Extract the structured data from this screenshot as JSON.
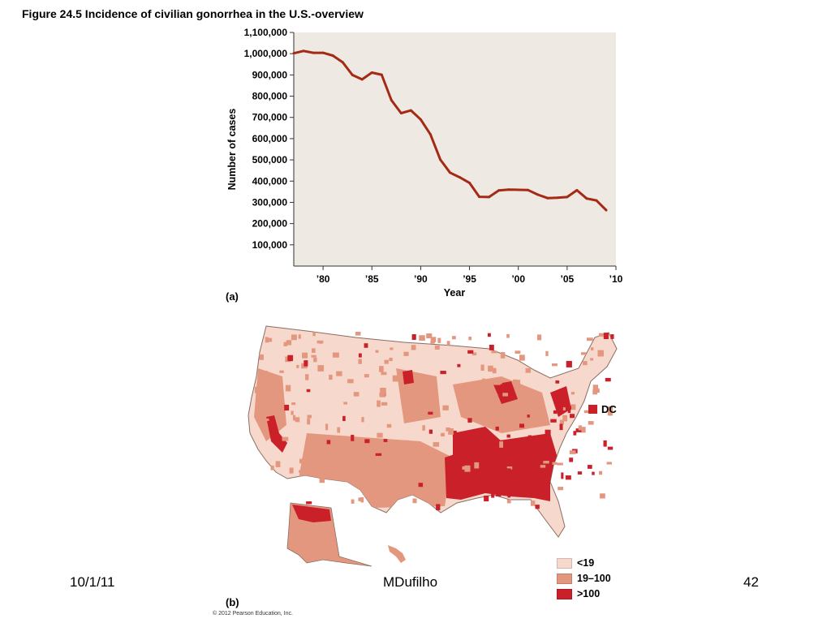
{
  "slide": {
    "title": "Figure 24.5  Incidence of civilian gonorrhea in the U.S.-overview",
    "footer_date": "10/1/11",
    "footer_author": "MDufilho",
    "footer_page": "42",
    "copyright": "© 2012 Pearson Education, Inc."
  },
  "colors": {
    "plot_bg": "#eeeae3",
    "line": "#a52a16",
    "map_low": "#f7d8cc",
    "map_mid": "#e4977f",
    "map_high": "#c9202a"
  },
  "chart_data": {
    "type": "line",
    "panel_label": "(a)",
    "xlabel": "Year",
    "ylabel": "Number of cases",
    "xlim": [
      1977,
      2010
    ],
    "ylim": [
      0,
      1100000
    ],
    "x_ticks": [
      {
        "value": 1980,
        "label": "’80"
      },
      {
        "value": 1985,
        "label": "’85"
      },
      {
        "value": 1990,
        "label": "’90"
      },
      {
        "value": 1995,
        "label": "’95"
      },
      {
        "value": 2000,
        "label": "’00"
      },
      {
        "value": 2005,
        "label": "’05"
      },
      {
        "value": 2010,
        "label": "’10"
      }
    ],
    "y_ticks": [
      {
        "value": 100000,
        "label": "100,000"
      },
      {
        "value": 200000,
        "label": "200,000"
      },
      {
        "value": 300000,
        "label": "300,000"
      },
      {
        "value": 400000,
        "label": "400,000"
      },
      {
        "value": 500000,
        "label": "500,000"
      },
      {
        "value": 600000,
        "label": "600,000"
      },
      {
        "value": 700000,
        "label": "700,000"
      },
      {
        "value": 800000,
        "label": "800,000"
      },
      {
        "value": 900000,
        "label": "900,000"
      },
      {
        "value": 1000000,
        "label": "1,000,000"
      },
      {
        "value": 1100000,
        "label": "1,100,000"
      }
    ],
    "grid": false,
    "series": [
      {
        "x": [
          1977,
          1978,
          1979,
          1980,
          1981,
          1982,
          1983,
          1984,
          1985,
          1986,
          1987,
          1988,
          1989,
          1990,
          1991,
          1992,
          1993,
          1994,
          1995,
          1996,
          1997,
          1998,
          1999,
          2000,
          2001,
          2002,
          2003,
          2004,
          2005,
          2006,
          2007,
          2008,
          2009
        ],
        "values": [
          1002000,
          1013000,
          1004000,
          1004000,
          991000,
          960000,
          900000,
          879000,
          911000,
          901000,
          781000,
          720000,
          733000,
          690000,
          620000,
          502000,
          440000,
          418000,
          392000,
          326000,
          325000,
          356000,
          360000,
          359000,
          358000,
          336000,
          320000,
          322000,
          325000,
          357000,
          318000,
          309000,
          263000
        ]
      }
    ]
  },
  "map": {
    "panel_label": "(b)",
    "dc_label": "DC",
    "legend": [
      {
        "label": "<19",
        "color_key": "map_low"
      },
      {
        "label": "19–100",
        "color_key": "map_mid"
      },
      {
        "label": ">100",
        "color_key": "map_high"
      }
    ]
  }
}
